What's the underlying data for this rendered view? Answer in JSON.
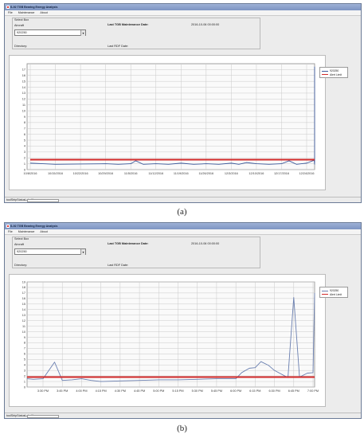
{
  "screens": [
    {
      "caption": "(a)",
      "window": {
        "title": "S-92 TGB Bearing Energy Analysis",
        "menu": [
          "File",
          "Maintenance",
          "About"
        ],
        "select_box_label": "Select Box",
        "aircraft_label": "Aircraft",
        "aircraft_value": "920250",
        "directory_label": "Directory:",
        "last_tgb_label": "Last TGB Maintenance Date:",
        "last_tgb_value": "2016-10-06 00:00:00",
        "last_rdf_label": "Last RDF Date:",
        "status_text": "toolStripStatusLabel1"
      },
      "legend": [
        "920250",
        "Alert Limit"
      ],
      "colors": {
        "series": "#3d5a9c",
        "alert": "#d22a2a",
        "grid": "#c9c9c9"
      },
      "chart_data": {
        "type": "line",
        "x_labels": [
          "10/8/2016",
          "10/15/2016",
          "10/22/2016",
          "10/29/2016",
          "11/5/2016",
          "11/12/2016",
          "11/19/2016",
          "11/26/2016",
          "12/3/2016",
          "12/10/2016",
          "12/17/2016",
          "12/24/2016"
        ],
        "y_ticks": [
          0,
          1,
          2,
          3,
          4,
          5,
          6,
          7,
          8,
          9,
          10,
          11,
          12,
          13,
          14,
          15,
          16,
          17
        ],
        "ylim": [
          0,
          18
        ],
        "alert_limit": 1.7,
        "series": [
          {
            "name": "920250",
            "x": [
              0,
              0.5,
              1,
              2,
              3,
              3.5,
              4,
              4.2,
              4.5,
              5,
              5.5,
              6,
              6.5,
              7,
              7.5,
              8,
              8.3,
              8.6,
              9,
              9.5,
              10,
              10.3,
              10.6,
              11,
              11.3,
              11.6,
              11.9,
              12,
              12.05
            ],
            "y": [
              1.1,
              1.0,
              0.9,
              0.95,
              1.0,
              0.9,
              1.0,
              1.5,
              0.9,
              1.0,
              0.9,
              1.1,
              0.9,
              1.0,
              0.9,
              1.1,
              0.9,
              1.2,
              1.0,
              0.9,
              1.0,
              1.5,
              0.9,
              1.1,
              1.6,
              0.9,
              1.3,
              1.2,
              17.5
            ]
          },
          {
            "name": "Alert Limit",
            "x": [
              0,
              12.05
            ],
            "y": [
              1.7,
              1.7
            ]
          }
        ]
      }
    },
    {
      "caption": "(b)",
      "window": {
        "title": "S-92 TGB Bearing Energy Analysis",
        "menu": [
          "File",
          "Maintenance",
          "About"
        ],
        "select_box_label": "Select Box",
        "aircraft_label": "Aircraft",
        "aircraft_value": "920250",
        "directory_label": "Directory:",
        "last_tgb_label": "Last TGB Maintenance Date:",
        "last_tgb_value": "2016-10-06 00:00:00",
        "last_rdf_label": "Last RDF Date:",
        "status_text": "toolStripStatusLabel1"
      },
      "legend": [
        "920250",
        "Alert Limit"
      ],
      "colors": {
        "series": "#6a7fb0",
        "alert": "#d22a2a",
        "grid": "#c9c9c9"
      },
      "chart_data": {
        "type": "line",
        "x_labels": [
          "3:30 PM",
          "3:45 PM",
          "4:00 PM",
          "4:15 PM",
          "4:30 PM",
          "4:45 PM",
          "5:00 PM",
          "5:15 PM",
          "5:30 PM",
          "5:45 PM",
          "6:00 PM",
          "6:15 PM",
          "6:30 PM",
          "6:45 PM",
          "7:00 PM"
        ],
        "y_ticks": [
          0,
          1,
          2,
          3,
          4,
          5,
          6,
          7,
          8,
          9,
          10,
          11,
          12,
          13,
          14,
          15,
          16,
          17,
          18,
          19
        ],
        "ylim": [
          0,
          19
        ],
        "alert_limit": 1.8,
        "series": [
          {
            "name": "920250",
            "x": [
              -1,
              -0.5,
              0,
              0.6,
              1,
              1.5,
              2,
              2.5,
              3,
              4,
              5,
              6,
              7,
              8,
              9,
              10,
              10.3,
              10.7,
              11,
              11.3,
              11.7,
              12,
              12.7,
              13,
              13.3,
              13.7,
              14,
              14.1
            ],
            "y": [
              1.5,
              1.4,
              1.5,
              4.5,
              1.2,
              1.3,
              1.5,
              1.2,
              1.0,
              1.1,
              1.2,
              1.3,
              1.3,
              1.4,
              1.5,
              1.5,
              2.6,
              3.4,
              3.5,
              4.6,
              3.9,
              3.0,
              1.7,
              16.2,
              1.8,
              2.5,
              2.6,
              17.0
            ]
          },
          {
            "name": "Alert Limit",
            "x": [
              -1,
              14.1
            ],
            "y": [
              1.8,
              1.8
            ]
          }
        ]
      }
    }
  ]
}
